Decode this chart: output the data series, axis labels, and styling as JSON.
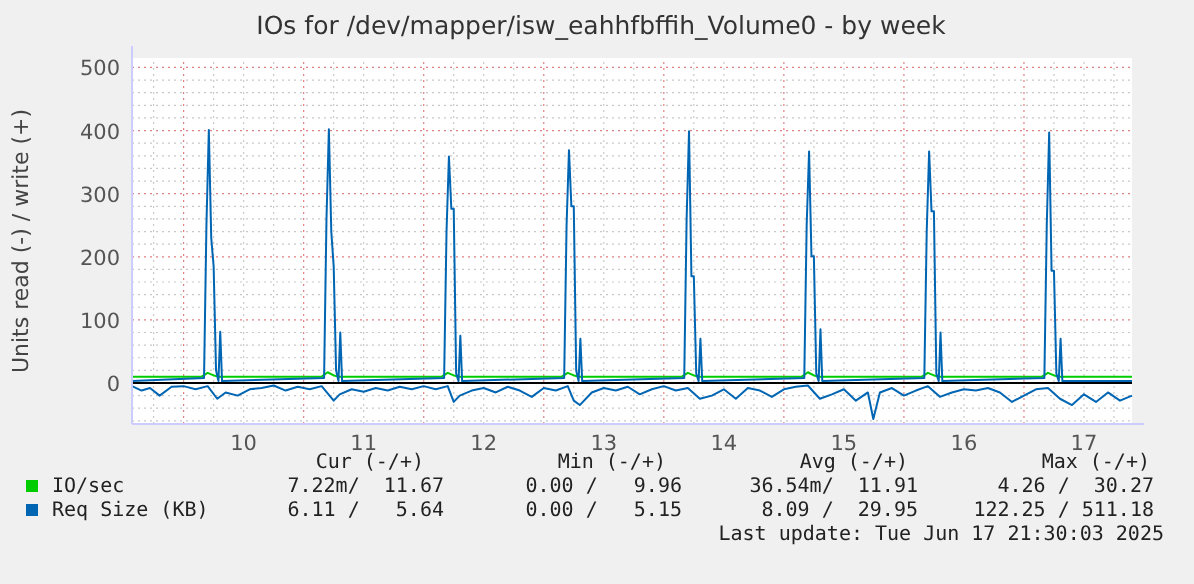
{
  "chart_data": {
    "type": "line",
    "title": "IOs for /dev/mapper/isw_eahhfbffih_Volume0 - by week",
    "ylabel": "Units read (-) / write (+)",
    "xlim": [
      9.57,
      17.9
    ],
    "ylim": [
      -65,
      515
    ],
    "xticks": [
      {
        "value": 9.75,
        "label": null
      },
      {
        "value": 10,
        "label": null
      },
      {
        "value": 10.25,
        "label": null
      },
      {
        "value": 10.5,
        "label": "10"
      },
      {
        "value": 10.75,
        "label": null
      },
      {
        "value": 11,
        "label": null
      },
      {
        "value": 11.25,
        "label": null
      },
      {
        "value": 11.5,
        "label": "11"
      },
      {
        "value": 11.75,
        "label": null
      },
      {
        "value": 12,
        "label": null
      },
      {
        "value": 12.25,
        "label": null
      },
      {
        "value": 12.5,
        "label": "12"
      },
      {
        "value": 12.75,
        "label": null
      },
      {
        "value": 13,
        "label": null
      },
      {
        "value": 13.25,
        "label": null
      },
      {
        "value": 13.5,
        "label": "13"
      },
      {
        "value": 13.75,
        "label": null
      },
      {
        "value": 14,
        "label": null
      },
      {
        "value": 14.25,
        "label": null
      },
      {
        "value": 14.5,
        "label": "14"
      },
      {
        "value": 14.75,
        "label": null
      },
      {
        "value": 15,
        "label": null
      },
      {
        "value": 15.25,
        "label": null
      },
      {
        "value": 15.5,
        "label": "15"
      },
      {
        "value": 15.75,
        "label": null
      },
      {
        "value": 16,
        "label": null
      },
      {
        "value": 16.25,
        "label": null
      },
      {
        "value": 16.5,
        "label": "16"
      },
      {
        "value": 16.75,
        "label": null
      },
      {
        "value": 17,
        "label": null
      },
      {
        "value": 17.25,
        "label": null
      },
      {
        "value": 17.5,
        "label": "17"
      },
      {
        "value": 17.75,
        "label": null
      }
    ],
    "yticks": [
      {
        "value": -60,
        "label": null
      },
      {
        "value": -40,
        "label": null
      },
      {
        "value": -20,
        "label": null
      },
      0,
      {
        "value": 20,
        "label": null
      },
      {
        "value": 40,
        "label": null
      },
      {
        "value": 60,
        "label": null
      },
      {
        "value": 80,
        "label": null
      },
      100,
      {
        "value": 120,
        "label": null
      },
      {
        "value": 140,
        "label": null
      },
      {
        "value": 160,
        "label": null
      },
      {
        "value": 180,
        "label": null
      },
      200,
      {
        "value": 220,
        "label": null
      },
      {
        "value": 240,
        "label": null
      },
      {
        "value": 260,
        "label": null
      },
      {
        "value": 280,
        "label": null
      },
      300,
      {
        "value": 320,
        "label": null
      },
      {
        "value": 340,
        "label": null
      },
      {
        "value": 360,
        "label": null
      },
      {
        "value": 380,
        "label": null
      },
      400,
      {
        "value": 420,
        "label": null
      },
      {
        "value": 440,
        "label": null
      },
      {
        "value": 460,
        "label": null
      },
      {
        "value": 480,
        "label": null
      },
      500
    ],
    "grid": true,
    "legend": "bottom",
    "ref_lines": [
      {
        "axis": "y",
        "value": 0,
        "color": "#000000"
      }
    ],
    "series": [
      {
        "name": "IO/sec",
        "color": "#00cc00",
        "x": [
          9.57,
          10.15,
          10.2,
          10.25,
          10.3,
          11.15,
          11.2,
          11.25,
          11.3,
          12.15,
          12.2,
          12.25,
          12.3,
          13.15,
          13.2,
          13.25,
          13.3,
          14.15,
          14.2,
          14.25,
          14.3,
          15.15,
          15.2,
          15.25,
          15.3,
          16.15,
          16.2,
          16.25,
          16.3,
          17.15,
          17.2,
          17.25,
          17.3,
          17.9
        ],
        "values": [
          10,
          10,
          16,
          12,
          10,
          10,
          17,
          12,
          10,
          10,
          16,
          12,
          10,
          10,
          16,
          12,
          10,
          10,
          16,
          12,
          10,
          10,
          17,
          12,
          10,
          10,
          16,
          12,
          10,
          10,
          16,
          12,
          10,
          10
        ]
      },
      {
        "name": "Req Size (KB)",
        "color": "#0066b3",
        "x": [
          9.57,
          10.17,
          10.19,
          10.21,
          10.23,
          10.25,
          10.27,
          10.29,
          10.305,
          10.32,
          11.17,
          11.19,
          11.21,
          11.23,
          11.25,
          11.27,
          11.29,
          11.305,
          11.32,
          12.17,
          12.19,
          12.21,
          12.23,
          12.25,
          12.27,
          12.29,
          12.305,
          12.32,
          13.17,
          13.19,
          13.21,
          13.23,
          13.25,
          13.27,
          13.29,
          13.305,
          13.32,
          14.17,
          14.19,
          14.21,
          14.23,
          14.25,
          14.27,
          14.29,
          14.305,
          14.32,
          15.17,
          15.19,
          15.21,
          15.23,
          15.25,
          15.27,
          15.29,
          15.305,
          15.32,
          16.17,
          16.19,
          16.21,
          16.23,
          16.25,
          16.27,
          16.29,
          16.305,
          16.32,
          17.17,
          17.19,
          17.21,
          17.23,
          17.25,
          17.27,
          17.29,
          17.305,
          17.32,
          17.9
        ],
        "values": [
          3,
          8,
          250,
          401,
          230,
          185,
          20,
          3,
          81,
          3,
          8,
          260,
          402,
          240,
          185,
          20,
          3,
          80,
          3,
          8,
          240,
          359,
          276,
          276,
          15,
          3,
          75,
          3,
          8,
          250,
          369,
          280,
          280,
          20,
          3,
          70,
          3,
          8,
          260,
          399,
          169,
          169,
          15,
          3,
          70,
          3,
          8,
          250,
          367,
          201,
          201,
          15,
          3,
          85,
          3,
          8,
          240,
          367,
          272,
          272,
          15,
          3,
          80,
          3,
          8,
          250,
          397,
          178,
          178,
          15,
          3,
          70,
          3,
          3
        ]
      },
      {
        "color": "#0066b3",
        "x": [
          9.57,
          9.65,
          9.72,
          9.8,
          9.9,
          10.0,
          10.1,
          10.2,
          10.28,
          10.35,
          10.45,
          10.55,
          10.65,
          10.75,
          10.85,
          10.95,
          11.05,
          11.15,
          11.25,
          11.3,
          11.4,
          11.5,
          11.6,
          11.7,
          11.8,
          11.9,
          12.0,
          12.1,
          12.2,
          12.25,
          12.3,
          12.4,
          12.5,
          12.6,
          12.7,
          12.8,
          12.9,
          13.0,
          13.1,
          13.2,
          13.25,
          13.3,
          13.4,
          13.5,
          13.6,
          13.7,
          13.8,
          13.9,
          14.0,
          14.1,
          14.2,
          14.3,
          14.4,
          14.5,
          14.6,
          14.7,
          14.8,
          14.9,
          15.0,
          15.1,
          15.2,
          15.3,
          15.4,
          15.5,
          15.6,
          15.7,
          15.745,
          15.8,
          15.9,
          16.0,
          16.1,
          16.2,
          16.3,
          16.4,
          16.5,
          16.6,
          16.7,
          16.8,
          16.9,
          17.0,
          17.1,
          17.2,
          17.3,
          17.4,
          17.5,
          17.6,
          17.7,
          17.8,
          17.9
        ],
        "values": [
          -5,
          -12,
          -8,
          -20,
          -6,
          -5,
          -10,
          -5,
          -25,
          -15,
          -20,
          -10,
          -8,
          -4,
          -12,
          -6,
          -10,
          -5,
          -28,
          -18,
          -10,
          -14,
          -8,
          -12,
          -6,
          -10,
          -5,
          -10,
          -5,
          -30,
          -20,
          -12,
          -8,
          -15,
          -6,
          -12,
          -22,
          -8,
          -12,
          -5,
          -28,
          -35,
          -15,
          -8,
          -12,
          -6,
          -18,
          -10,
          -5,
          -12,
          -8,
          -25,
          -20,
          -10,
          -25,
          -8,
          -12,
          -22,
          -10,
          -6,
          -4,
          -25,
          -18,
          -10,
          -28,
          -15,
          -57,
          -15,
          -8,
          -20,
          -12,
          -5,
          -22,
          -15,
          -10,
          -12,
          -8,
          -15,
          -30,
          -20,
          -10,
          -8,
          -25,
          -35,
          -18,
          -30,
          -15,
          -28,
          -20
        ]
      }
    ],
    "annotations": [
      "Cur (-/+)",
      "Min (-/+)",
      "Avg (-/+)",
      "Max (-/+)",
      "7.22m/  11.67",
      "0.00 /   9.96",
      "36.54m/  11.91",
      "4.26 /  30.27",
      "6.11 /   5.64",
      "0.00 /   5.15",
      "8.09 /  29.95",
      "122.25 / 511.18",
      "Last update: Tue Jun 17 21:30:03 2025"
    ]
  }
}
